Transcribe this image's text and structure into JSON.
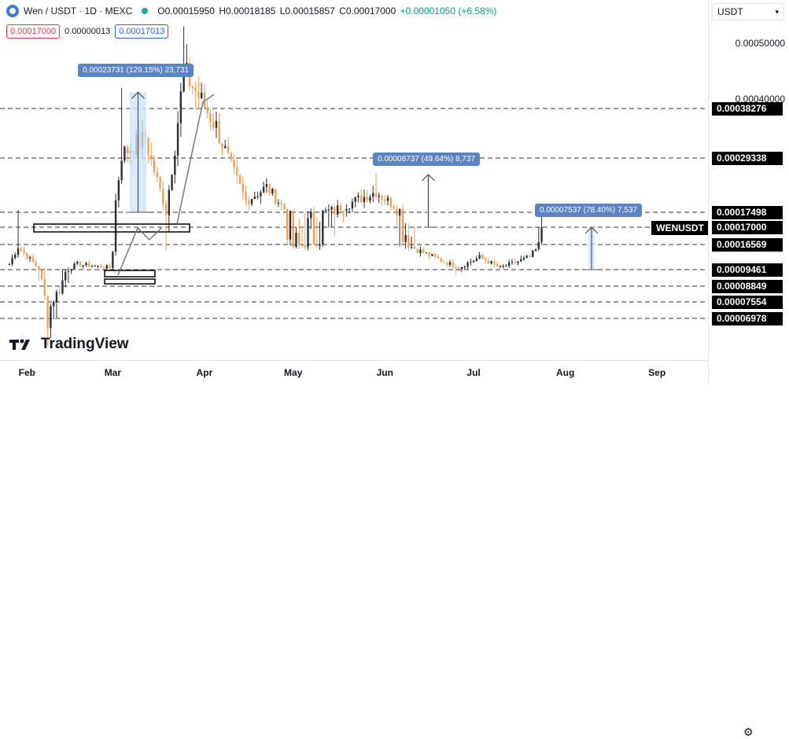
{
  "header": {
    "symbol": "Wen / USDT · 1D · MEXC",
    "open": "O0.00015950",
    "high": "H0.00018185",
    "low": "L0.00015857",
    "close": "C0.00017000",
    "change": "+0.00001050 (+6.58%)",
    "sell_price": "0.00017000",
    "spread": "0.00000013",
    "buy_price": "0.00017013"
  },
  "currency_select": {
    "value": "USDT"
  },
  "brand": {
    "name": "TradingView"
  },
  "symbol_tag": "WENUSDT",
  "price_axis": {
    "labels": [
      {
        "text": "0.00050000",
        "value": 0.0005
      },
      {
        "text": "0.00040000",
        "value": 0.0004
      }
    ],
    "tags": [
      {
        "text": "0.00038276",
        "value": 0.00038276
      },
      {
        "text": "0.00029338",
        "value": 0.00029338
      },
      {
        "text": "0.00017498",
        "value": 0.00017498
      },
      {
        "text": "0.00017000",
        "value": 0.00017
      },
      {
        "text": "0.00016569",
        "value": 0.00016569
      },
      {
        "text": "0.00009461",
        "value": 9.461e-05
      },
      {
        "text": "0.00008849",
        "value": 8.849e-05
      },
      {
        "text": "0.00007554",
        "value": 7.554e-05
      },
      {
        "text": "0.00006978",
        "value": 6.978e-05
      }
    ]
  },
  "time_axis": {
    "months": [
      "Feb",
      "Mar",
      "Apr",
      "May",
      "Jun",
      "Jul",
      "Aug",
      "Sep"
    ]
  },
  "annotations": [
    {
      "text": "0.00023731 (129.15%) 23,731"
    },
    {
      "text": "0.00008737 (49.64%) 8,737"
    },
    {
      "text": "0.00007537 (78.40%) 7,537"
    }
  ],
  "colors": {
    "up": "#2e2e2e",
    "down": "#f5a05a",
    "annotation": "#5b84c4",
    "measure_fill": "#cfe3f7"
  },
  "chart_data": {
    "type": "candlestick",
    "title": "Wen / USDT · 1D · MEXC",
    "price_unit": "USDT",
    "ylim": [
      4e-05,
      0.00055
    ],
    "xlim": [
      "2024-01-25",
      "2024-09-10"
    ],
    "grid": false,
    "horizontal_levels": [
      0.00038276,
      0.00029338,
      0.00017498,
      0.00017,
      0.00016569,
      9.461e-05,
      8.849e-05,
      7.554e-05,
      6.978e-05
    ],
    "key_points": [
      {
        "date": "2024-01-26",
        "close": 0.00011
      },
      {
        "date": "2024-01-29",
        "high": 0.00018,
        "close": 0.00016
      },
      {
        "date": "2024-02-08",
        "low": 6e-05,
        "close": 7e-05
      },
      {
        "date": "2024-02-18",
        "close": 0.00011
      },
      {
        "date": "2024-02-29",
        "close": 0.0001
      },
      {
        "date": "2024-03-04",
        "high": 0.00042,
        "close": 0.0003
      },
      {
        "date": "2024-03-12",
        "close": 0.00033
      },
      {
        "date": "2024-03-19",
        "low": 0.00015,
        "close": 0.00018
      },
      {
        "date": "2024-03-25",
        "high": 0.00053,
        "close": 0.00045
      },
      {
        "date": "2024-04-05",
        "close": 0.00035
      },
      {
        "date": "2024-04-15",
        "close": 0.0002
      },
      {
        "date": "2024-04-22",
        "close": 0.00023
      },
      {
        "date": "2024-05-01",
        "close": 0.00016
      },
      {
        "date": "2024-05-15",
        "close": 0.00018
      },
      {
        "date": "2024-05-29",
        "high": 0.00026,
        "close": 0.00022
      },
      {
        "date": "2024-06-12",
        "close": 0.00015
      },
      {
        "date": "2024-06-26",
        "low": 9.5e-05,
        "close": 0.0001
      },
      {
        "date": "2024-07-03",
        "close": 0.00013
      },
      {
        "date": "2024-07-10",
        "close": 0.0001
      },
      {
        "date": "2024-07-20",
        "close": 0.00013
      },
      {
        "date": "2024-07-24",
        "high": 0.00018185,
        "close": 0.00017
      }
    ],
    "measurements": [
      {
        "label": "0.00023731 (129.15%) 23,731",
        "from": 0.00017498,
        "to": 0.00041229
      },
      {
        "label": "0.00008737 (49.64%) 8,737",
        "from": 0.00017,
        "to": 0.00025737
      },
      {
        "label": "0.00007537 (78.40%) 7,537",
        "from": 9.461e-05,
        "to": 0.00016998
      }
    ]
  }
}
